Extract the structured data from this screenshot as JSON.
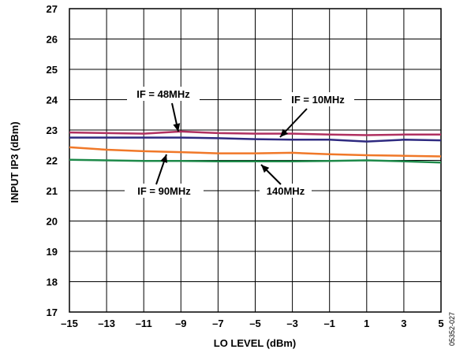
{
  "chart_data": {
    "type": "line",
    "xlabel": "LO LEVEL (dBm)",
    "ylabel": "INPUT IP3 (dBm)",
    "xlim": [
      -15,
      5
    ],
    "ylim": [
      17,
      27
    ],
    "x_ticks": [
      -15,
      -13,
      -11,
      -9,
      -7,
      -5,
      -3,
      -1,
      1,
      3,
      5
    ],
    "x_tick_labels": [
      "–15",
      "–13",
      "–11",
      "–9",
      "–7",
      "–5",
      "–3",
      "–1",
      "1",
      "3",
      "5"
    ],
    "y_ticks": [
      17,
      18,
      19,
      20,
      21,
      22,
      23,
      24,
      25,
      26,
      27
    ],
    "y_tick_labels": [
      "17",
      "18",
      "19",
      "20",
      "21",
      "22",
      "23",
      "24",
      "25",
      "26",
      "27"
    ],
    "grid": true,
    "series": [
      {
        "name": "IF = 48MHz",
        "color": "#b03060",
        "x": [
          -15,
          -13,
          -11,
          -9,
          -7,
          -5,
          -3,
          -1,
          1,
          3,
          5
        ],
        "values": [
          22.92,
          22.9,
          22.88,
          22.95,
          22.9,
          22.88,
          22.88,
          22.85,
          22.83,
          22.85,
          22.85
        ]
      },
      {
        "name": "IF = 10MHz",
        "color": "#2e2a80",
        "x": [
          -15,
          -13,
          -11,
          -9,
          -7,
          -5,
          -3,
          -1,
          1,
          3,
          5
        ],
        "values": [
          22.75,
          22.75,
          22.75,
          22.75,
          22.73,
          22.7,
          22.68,
          22.68,
          22.62,
          22.68,
          22.66
        ]
      },
      {
        "name": "IF = 90MHz",
        "color": "#f07828",
        "x": [
          -15,
          -13,
          -11,
          -9,
          -7,
          -5,
          -3,
          -1,
          1,
          3,
          5
        ],
        "values": [
          22.43,
          22.35,
          22.3,
          22.27,
          22.23,
          22.23,
          22.25,
          22.2,
          22.17,
          22.15,
          22.13
        ]
      },
      {
        "name": "140MHz",
        "color": "#1e8a4a",
        "x": [
          -15,
          -13,
          -11,
          -9,
          -7,
          -5,
          -3,
          -1,
          1,
          3,
          5
        ],
        "values": [
          22.02,
          22.0,
          21.98,
          21.98,
          21.97,
          21.97,
          21.97,
          21.98,
          22.0,
          21.97,
          21.93
        ]
      }
    ],
    "annotations": [
      {
        "text": "IF = 48MHz",
        "series": "IF = 48MHz"
      },
      {
        "text": "IF = 10MHz",
        "series": "IF = 10MHz"
      },
      {
        "text": "IF = 90MHz",
        "series": "IF = 90MHz"
      },
      {
        "text": "140MHz",
        "series": "140MHz"
      }
    ],
    "figure_code": "05352-027"
  }
}
